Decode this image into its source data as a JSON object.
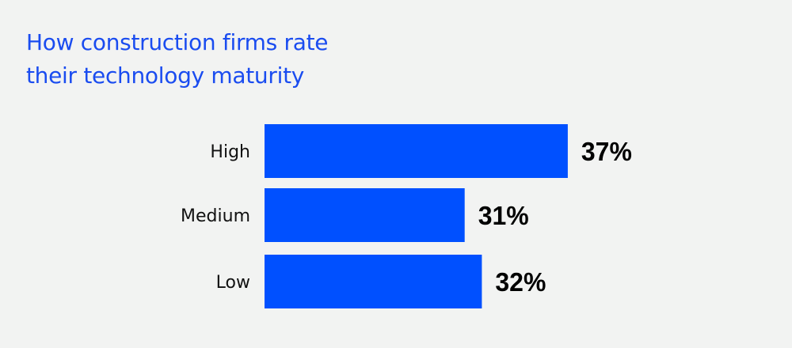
{
  "chart_data": {
    "type": "bar",
    "orientation": "horizontal",
    "title": "How construction firms rate their technology maturity",
    "title_lines": [
      "How construction firms rate",
      "their technology maturity"
    ],
    "categories": [
      "High",
      "Medium",
      "Low"
    ],
    "values": [
      37,
      31,
      32
    ],
    "value_labels": [
      "37%",
      "31%",
      "32%"
    ],
    "unit": "%",
    "xlabel": "",
    "ylabel": "",
    "grid": false,
    "legend": "none",
    "colors": {
      "bar": "#0050ff",
      "title": "#1a4cf0",
      "value_label": "#000000",
      "category_label": "#111111",
      "background": "#f2f3f2"
    }
  }
}
